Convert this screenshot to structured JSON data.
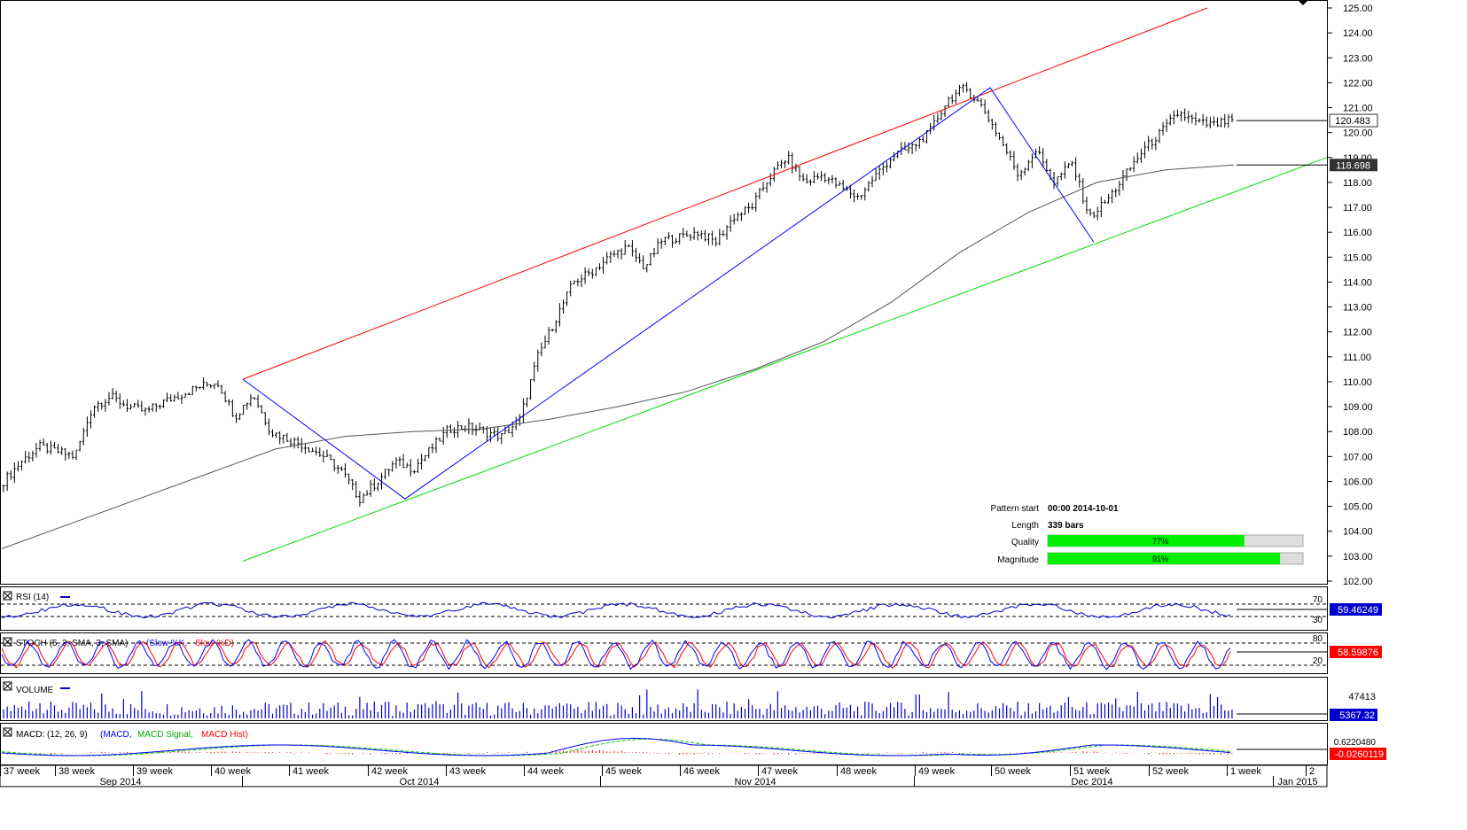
{
  "colors": {
    "rising_channel": "#ff0000",
    "support": "#00dd00",
    "zigzag": "#0000ff",
    "moving_average": "#555555",
    "rsi": "#0000cc",
    "stoch_main": "#0000ff",
    "stoch_signal": "#ff0000",
    "volume": "#0000cc",
    "macd": "#0000ff",
    "macd_signal": "#00cc00",
    "macd_hist": "#ff0000",
    "quality_bar": "#00ee00",
    "price_box": "#333333"
  },
  "price_panel": {
    "y_ticks": [
      "125.00",
      "124.00",
      "123.00",
      "122.00",
      "121.00",
      "120.00",
      "119.00",
      "118.00",
      "117.00",
      "116.00",
      "115.00",
      "114.00",
      "113.00",
      "112.00",
      "111.00",
      "110.00",
      "109.00",
      "108.00",
      "107.00",
      "106.00",
      "105.00",
      "104.00",
      "103.00",
      "102.00"
    ],
    "last_price": "120.483",
    "ma_value": "118.698"
  },
  "pattern_info": {
    "start_label": "Pattern start",
    "start_value": "00:00 2014-10-01",
    "length_label": "Length",
    "length_value": "339 bars",
    "quality_label": "Quality",
    "quality_value": "77%",
    "quality_level": 0.77,
    "magnitude_label": "Magnitude",
    "magnitude_value": "91%",
    "magnitude_level": 0.91
  },
  "rsi_panel": {
    "label": "RSI (14)",
    "level_high": "70",
    "level_low": "30",
    "value": "59.46249"
  },
  "stoch_panel": {
    "label": "STOCH (5, 3, SMA, 3, SMA)",
    "legend_main": "(Slow %K,",
    "legend_signal": "Slow %D)",
    "level_high": "80",
    "level_low": "20",
    "value": "58.59876"
  },
  "volume_panel": {
    "label": "VOLUME",
    "scale": "47413",
    "value": "5367.32"
  },
  "macd_panel": {
    "label": "MACD: (12, 26, 9)",
    "legend_macd": "(MACD,",
    "legend_signal": "MACD Signal,",
    "legend_hist": "MACD Hist)",
    "scale": "0.6220480",
    "value": "-0.0260119"
  },
  "time_axis": {
    "weeks": [
      "37 week",
      "38 week",
      "39 week",
      "40 week",
      "41 week",
      "42 week",
      "43 week",
      "44 week",
      "45 week",
      "46 week",
      "47 week",
      "48 week",
      "49 week",
      "50 week",
      "51 week",
      "52 week",
      "1 week",
      "2"
    ],
    "months": [
      "Sep 2014",
      "Oct 2014",
      "Nov 2014",
      "Dec 2014",
      "Jan 2015"
    ]
  },
  "chart_data": {
    "type": "line",
    "instrument_note": "",
    "ylim": [
      102,
      125
    ],
    "series": [
      {
        "values": [
          106.0,
          106.8,
          107.4,
          107.2,
          107.0,
          109.0,
          109.4,
          109.0,
          108.8,
          109.2,
          109.5,
          109.8,
          110.0,
          108.6,
          109.5,
          108.0,
          107.7,
          107.4,
          107.0,
          106.4,
          105.3,
          106.0,
          106.8,
          106.5,
          107.3,
          108.1,
          108.2,
          108.0,
          107.8,
          108.5,
          111.0,
          112.5,
          114.0,
          114.4,
          115.0,
          115.4,
          114.6,
          115.7,
          115.8,
          116.0,
          115.6,
          116.6,
          117.0,
          118.2,
          119.0,
          118.0,
          118.3,
          117.8,
          117.4,
          118.3,
          119.1,
          119.4,
          120.0,
          121.3,
          121.8,
          121.0,
          119.7,
          118.3,
          119.3,
          118.0,
          118.8,
          116.6,
          117.3,
          118.3,
          119.3,
          120.0,
          120.8,
          120.4,
          120.3,
          120.5
        ]
      },
      {
        "name": "",
        "values": [
          103.3,
          104.3,
          105.3,
          106.3,
          107.3,
          107.8,
          108.0,
          108.1,
          108.5,
          109.0,
          109.6,
          110.5,
          111.6,
          113.2,
          115.2,
          116.8,
          118.0,
          118.5,
          118.7
        ]
      }
    ],
    "support_line": {
      "from": 102.8,
      "to": 119.0
    },
    "resistance_line": {
      "from": 110.1,
      "to": 125.0
    },
    "zigzag": [
      110.1,
      105.3,
      121.8,
      115.6
    ]
  }
}
